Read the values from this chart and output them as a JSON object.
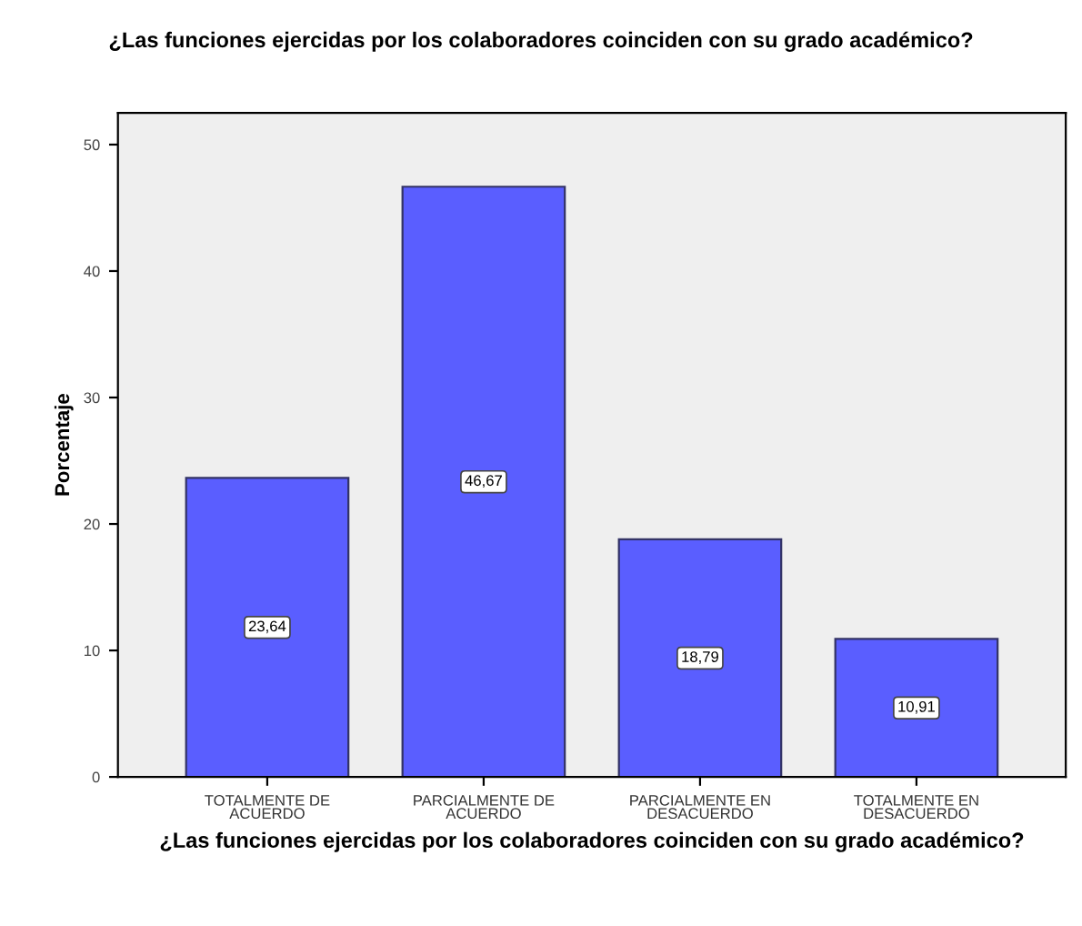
{
  "chart_data": {
    "type": "bar",
    "title": "¿Las funciones ejercidas por los colaboradores coinciden con su grado académico?",
    "xlabel": "¿Las funciones ejercidas por los colaboradores coinciden con su grado académico?",
    "ylabel": "Porcentaje",
    "categories": [
      "TOTALMENTE DE\nACUERDO",
      "PARCIALMENTE DE\nACUERDO",
      "PARCIALMENTE EN\nDESACUERDO",
      "TOTALMENTE EN\nDESACUERDO"
    ],
    "values": [
      23.64,
      46.67,
      18.79,
      10.91
    ],
    "value_labels": [
      "23,64",
      "46,67",
      "18,79",
      "10,91"
    ],
    "color": "#5a5eff",
    "ylim": [
      0,
      52.5
    ],
    "yticks": [
      0,
      10,
      20,
      30,
      40,
      50
    ],
    "grid": false
  }
}
